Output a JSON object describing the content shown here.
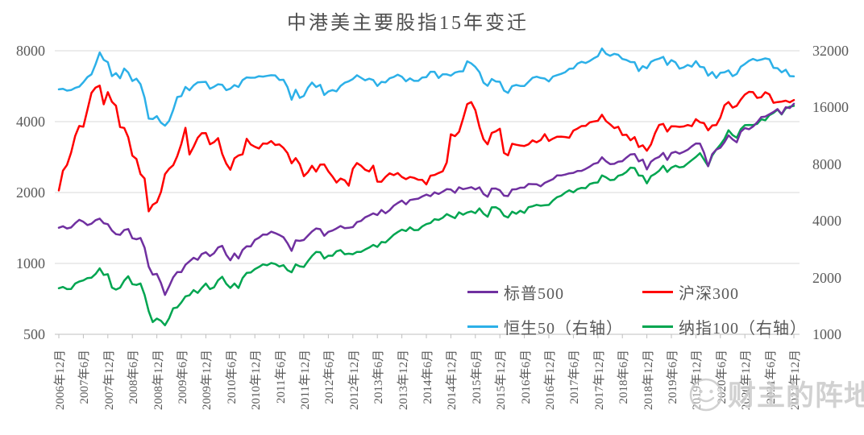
{
  "watermark": {
    "text": "财主的阵地",
    "icon": "smiley-face-icon"
  },
  "chart_data": {
    "type": "line",
    "title": "中港美主要股指15年变迁",
    "x_unit": "month",
    "x_range": [
      "2006年12月",
      "2021年12月"
    ],
    "x_tick_labels": [
      "2006年12月",
      "2007年6月",
      "2007年12月",
      "2008年6月",
      "2008年12月",
      "2009年6月",
      "2009年12月",
      "2010年6月",
      "2010年12月",
      "2011年6月",
      "2011年12月",
      "2012年6月",
      "2012年12月",
      "2013年6月",
      "2013年12月",
      "2014年6月",
      "2014年12月",
      "2015年6月",
      "2015年12月",
      "2016年6月",
      "2016年12月",
      "2017年6月",
      "2017年12月",
      "2018年6月",
      "2018年12月",
      "2019年6月",
      "2019年12月",
      "2020年6月",
      "2020年12月",
      "2021年6月",
      "2021年12月"
    ],
    "left_axis": {
      "scale": "log",
      "ticks": [
        8000,
        4000,
        2000,
        1000,
        500
      ]
    },
    "right_axis": {
      "scale": "log",
      "ticks": [
        32000,
        16000,
        8000,
        4000,
        2000,
        1000
      ]
    },
    "grid": "horizontal",
    "legend_position": "inside-bottom-right",
    "axis_text_color": "#595959",
    "gridline_color": "#d9d9d9",
    "series": [
      {
        "key": "sp500",
        "name": "标普500",
        "axis": "left",
        "color": "#7030A0",
        "values": [
          1418,
          1438,
          1407,
          1421,
          1482,
          1531,
          1503,
          1455,
          1474,
          1527,
          1549,
          1481,
          1468,
          1379,
          1331,
          1323,
          1386,
          1400,
          1280,
          1267,
          1283,
          1166,
          969,
          896,
          903,
          826,
          735,
          798,
          873,
          919,
          919,
          987,
          1021,
          1057,
          1036,
          1096,
          1115,
          1074,
          1104,
          1169,
          1187,
          1089,
          1031,
          1102,
          1049,
          1141,
          1183,
          1181,
          1258,
          1286,
          1327,
          1326,
          1364,
          1345,
          1321,
          1292,
          1219,
          1131,
          1253,
          1247,
          1258,
          1312,
          1366,
          1408,
          1398,
          1310,
          1362,
          1379,
          1407,
          1441,
          1412,
          1416,
          1426,
          1498,
          1515,
          1569,
          1598,
          1631,
          1606,
          1686,
          1633,
          1682,
          1757,
          1806,
          1848,
          1783,
          1859,
          1872,
          1884,
          1924,
          1960,
          1931,
          2003,
          1972,
          2018,
          2068,
          2059,
          1995,
          2105,
          2068,
          2086,
          2107,
          2063,
          2104,
          1972,
          1920,
          2079,
          2080,
          2044,
          1940,
          1932,
          2060,
          2065,
          2097,
          2099,
          2174,
          2171,
          2168,
          2126,
          2199,
          2239,
          2279,
          2364,
          2363,
          2384,
          2412,
          2423,
          2470,
          2472,
          2519,
          2575,
          2648,
          2674,
          2824,
          2714,
          2641,
          2648,
          2705,
          2718,
          2816,
          2902,
          2914,
          2712,
          2760,
          2507,
          2704,
          2784,
          2834,
          2946,
          2752,
          2942,
          2980,
          2926,
          2977,
          3038,
          3141,
          3231,
          3226,
          2954,
          2585,
          2912,
          3044,
          3100,
          3271,
          3500,
          3363,
          3270,
          3622,
          3756,
          3714,
          3811,
          3973,
          4181,
          4204,
          4298,
          4395,
          4523,
          4308,
          4605,
          4567,
          4766
        ]
      },
      {
        "key": "csi300",
        "name": "沪深300",
        "axis": "left",
        "color": "#FF0000",
        "values": [
          2041,
          2476,
          2618,
          2953,
          3479,
          3833,
          3805,
          4494,
          5297,
          5581,
          5688,
          4737,
          5338,
          4857,
          4672,
          3790,
          3762,
          3433,
          2869,
          2775,
          2397,
          2294,
          1664,
          1775,
          1818,
          2011,
          2392,
          2521,
          2613,
          2852,
          3218,
          3766,
          2900,
          3128,
          3414,
          3571,
          3576,
          3205,
          3271,
          3404,
          2918,
          2655,
          2500,
          2796,
          2874,
          2905,
          3381,
          3201,
          3128,
          3076,
          3232,
          3223,
          3309,
          3182,
          3201,
          3093,
          2943,
          2663,
          2799,
          2638,
          2346,
          2442,
          2598,
          2454,
          2627,
          2632,
          2461,
          2339,
          2205,
          2294,
          2254,
          2139,
          2523,
          2669,
          2600,
          2499,
          2458,
          2599,
          2224,
          2222,
          2329,
          2412,
          2370,
          2420,
          2331,
          2280,
          2329,
          2309,
          2266,
          2263,
          2166,
          2358,
          2374,
          2420,
          2463,
          2683,
          3534,
          3471,
          3618,
          4124,
          4748,
          4840,
          4473,
          3796,
          3366,
          3203,
          3583,
          3635,
          3731,
          2946,
          2877,
          3222,
          3191,
          3168,
          3154,
          3204,
          3330,
          3269,
          3340,
          3538,
          3310,
          3388,
          3452,
          3456,
          3440,
          3418,
          3666,
          3738,
          3831,
          3837,
          3971,
          4006,
          4031,
          4276,
          4023,
          3898,
          3757,
          3802,
          3511,
          3518,
          3335,
          3439,
          3120,
          3173,
          3011,
          3202,
          3572,
          3872,
          3913,
          3630,
          3825,
          3818,
          3800,
          3815,
          3870,
          3828,
          4097,
          3976,
          3940,
          3674,
          3851,
          3868,
          4163,
          4695,
          4844,
          4587,
          4673,
          4961,
          5211,
          5352,
          5336,
          5048,
          5078,
          5332,
          5224,
          4811,
          4842,
          4866,
          4909,
          4832,
          4940
        ]
      },
      {
        "key": "hsi50",
        "name": "恒生50（右轴）",
        "axis": "right",
        "color": "#2CB0E8",
        "values": [
          19965,
          20106,
          19652,
          19801,
          20319,
          20635,
          21773,
          23185,
          23984,
          27142,
          31353,
          28643,
          27813,
          23456,
          24332,
          22849,
          25755,
          24533,
          22102,
          22731,
          21262,
          18016,
          13969,
          13888,
          14387,
          13278,
          12812,
          13576,
          15521,
          18171,
          18378,
          20573,
          19724,
          20955,
          21753,
          21822,
          21873,
          20122,
          20609,
          21239,
          21109,
          19765,
          20129,
          21030,
          20537,
          22358,
          23096,
          23007,
          23035,
          23447,
          23338,
          23528,
          23721,
          23684,
          22398,
          22440,
          20535,
          17592,
          19865,
          17989,
          18434,
          20390,
          21680,
          20556,
          21095,
          18629,
          19442,
          19796,
          19483,
          20840,
          21641,
          22031,
          22657,
          23729,
          23020,
          22300,
          22737,
          22392,
          20803,
          21884,
          21732,
          22860,
          23206,
          23881,
          23306,
          22035,
          22837,
          22151,
          22134,
          23082,
          23191,
          24757,
          24742,
          22933,
          23998,
          23987,
          23605,
          24507,
          24823,
          24901,
          28133,
          27424,
          26250,
          24636,
          21671,
          20846,
          22640,
          21996,
          21914,
          19683,
          19112,
          20777,
          21067,
          20815,
          20794,
          21891,
          22977,
          23297,
          22935,
          22790,
          22001,
          23361,
          23741,
          24112,
          24615,
          25661,
          25765,
          27324,
          27970,
          27554,
          28246,
          29177,
          29919,
          32887,
          30845,
          30093,
          30808,
          30469,
          28955,
          28583,
          27889,
          27789,
          24980,
          26507,
          25846,
          27942,
          28633,
          29051,
          29699,
          26901,
          28543,
          27778,
          25725,
          26092,
          26907,
          26346,
          28189,
          26313,
          26130,
          23603,
          24644,
          22961,
          24427,
          24595,
          25177,
          23459,
          24107,
          26341,
          27231,
          28284,
          28980,
          28378,
          28724,
          29152,
          28828,
          25961,
          25879,
          24576,
          25377,
          23475,
          23398
        ]
      },
      {
        "key": "ndx100",
        "name": "纳指100（右轴）",
        "axis": "right",
        "color": "#00A550",
        "values": [
          1757,
          1784,
          1738,
          1740,
          1860,
          1906,
          1932,
          1988,
          1998,
          2091,
          2239,
          2067,
          2085,
          1770,
          1727,
          1769,
          1926,
          2033,
          1845,
          1828,
          1861,
          1618,
          1327,
          1161,
          1212,
          1180,
          1117,
          1217,
          1374,
          1389,
          1477,
          1590,
          1611,
          1717,
          1658,
          1761,
          1860,
          1737,
          1775,
          1936,
          2020,
          1855,
          1764,
          1860,
          1761,
          1988,
          2118,
          2128,
          2218,
          2278,
          2351,
          2325,
          2390,
          2361,
          2290,
          2327,
          2190,
          2134,
          2350,
          2296,
          2278,
          2448,
          2605,
          2738,
          2726,
          2524,
          2615,
          2611,
          2759,
          2799,
          2661,
          2680,
          2660,
          2738,
          2738,
          2818,
          2887,
          2982,
          2909,
          3090,
          3073,
          3218,
          3377,
          3487,
          3592,
          3534,
          3696,
          3571,
          3580,
          3737,
          3844,
          3899,
          4082,
          4049,
          4158,
          4347,
          4236,
          4135,
          4441,
          4316,
          4431,
          4491,
          4397,
          4660,
          4366,
          4211,
          4718,
          4727,
          4593,
          4261,
          4167,
          4474,
          4363,
          4527,
          4408,
          4731,
          4781,
          4867,
          4813,
          4845,
          4863,
          5132,
          5342,
          5439,
          5653,
          5815,
          5672,
          5897,
          5988,
          5967,
          6270,
          6364,
          6396,
          6971,
          6813,
          6581,
          6617,
          6942,
          7041,
          7277,
          7665,
          7627,
          6966,
          6938,
          6330,
          6907,
          7102,
          7379,
          7845,
          7278,
          7671,
          7848,
          7691,
          7749,
          8083,
          8404,
          8733,
          9151,
          8462,
          7813,
          8890,
          9556,
          10157,
          10906,
          12111,
          11418,
          11053,
          12268,
          12888,
          12926,
          12910,
          13092,
          13860,
          13687,
          14555,
          14960,
          15583,
          14690,
          15851,
          16135,
          16320
        ]
      }
    ]
  }
}
